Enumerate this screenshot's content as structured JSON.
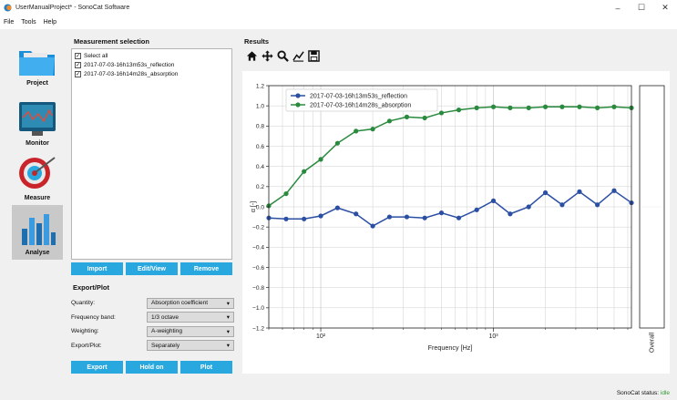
{
  "window": {
    "title": "UserManualProject* - SonoCat Software",
    "controls": [
      "–",
      "☐",
      "✕"
    ]
  },
  "menu": [
    "File",
    "Tools",
    "Help"
  ],
  "sidebar": [
    {
      "label": "Project",
      "icon": "folder-icon"
    },
    {
      "label": "Monitor",
      "icon": "monitor-icon"
    },
    {
      "label": "Measure",
      "icon": "target-icon"
    },
    {
      "label": "Analyse",
      "icon": "chart-bars-icon",
      "active": true
    }
  ],
  "measurement_selection": {
    "title": "Measurement selection",
    "select_all": "Select all",
    "items": [
      "2017-07-03-16h13m53s_reflection",
      "2017-07-03-16h14m28s_absorption"
    ],
    "buttons": [
      "Import",
      "Edit/View",
      "Remove"
    ]
  },
  "export_plot": {
    "title": "Export/Plot",
    "fields": [
      {
        "label": "Quantity:",
        "value": "Absorption coefficient"
      },
      {
        "label": "Frequency band:",
        "value": "1/3 octave"
      },
      {
        "label": "Weighting:",
        "value": "A-weighting"
      },
      {
        "label": "Export/Plot:",
        "value": "Separately"
      }
    ],
    "buttons": [
      "Export",
      "Hold on",
      "Plot"
    ]
  },
  "results": {
    "title": "Results",
    "toolbar": [
      "home-icon",
      "pan-icon",
      "zoom-icon",
      "lines-icon",
      "save-icon"
    ]
  },
  "status": {
    "label": "SonoCat status:",
    "value": "idle"
  },
  "colors": {
    "accent": "#29a8e0",
    "series1": "#2b4fa3",
    "series2": "#2a8a3e"
  },
  "chart_data": {
    "type": "line",
    "xlabel": "Frequency [Hz]",
    "ylabel": "α [-]",
    "xscale": "log",
    "xlim": [
      50,
      6300
    ],
    "ylim": [
      -1.2,
      1.2
    ],
    "yticks": [
      "1.2",
      "1.0",
      "0.8",
      "0.6",
      "0.4",
      "0.2",
      "0.0",
      "−0.2",
      "−0.4",
      "−0.6",
      "−0.8",
      "−1.0",
      "−1.2"
    ],
    "xticks": [
      "10²",
      "10³"
    ],
    "grid": true,
    "legend": "top-left",
    "overall_label": "Overall",
    "x": [
      50,
      63,
      80,
      100,
      125,
      160,
      200,
      250,
      315,
      400,
      500,
      630,
      800,
      1000,
      1250,
      1600,
      2000,
      2500,
      3150,
      4000,
      5000,
      6300
    ],
    "series": [
      {
        "name": "2017-07-03-16h13m53s_reflection",
        "color": "#2b4fa3",
        "values": [
          -0.11,
          -0.12,
          -0.12,
          -0.09,
          -0.01,
          -0.07,
          -0.19,
          -0.1,
          -0.1,
          -0.11,
          -0.06,
          -0.11,
          -0.03,
          0.06,
          -0.07,
          0.0,
          0.14,
          0.02,
          0.15,
          0.02,
          0.16,
          0.04
        ]
      },
      {
        "name": "2017-07-03-16h14m28s_absorption",
        "color": "#2a8a3e",
        "values": [
          0.01,
          0.13,
          0.35,
          0.47,
          0.63,
          0.75,
          0.77,
          0.85,
          0.89,
          0.88,
          0.93,
          0.96,
          0.98,
          0.99,
          0.98,
          0.98,
          0.99,
          0.99,
          0.99,
          0.98,
          0.99,
          0.98
        ]
      }
    ]
  }
}
